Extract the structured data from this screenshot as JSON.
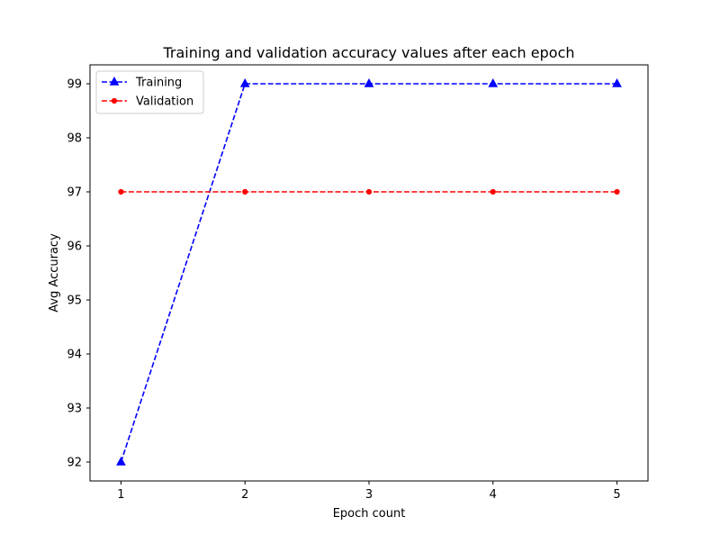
{
  "chart_data": {
    "type": "line",
    "title": "Training and validation accuracy values after each epoch",
    "xlabel": "Epoch count",
    "ylabel": "Avg Accuracy",
    "x": [
      1,
      2,
      3,
      4,
      5
    ],
    "xticks": [
      "1",
      "2",
      "3",
      "4",
      "5"
    ],
    "yticks": [
      "92",
      "93",
      "94",
      "95",
      "96",
      "97",
      "98",
      "99"
    ],
    "xlim": [
      0.75,
      5.25
    ],
    "ylim": [
      91.65,
      99.35
    ],
    "grid": false,
    "legend_position": "top-left",
    "series": [
      {
        "name": "Training",
        "values": [
          92,
          99,
          99,
          99,
          99
        ],
        "color": "#0000ff",
        "line_style": "dashed",
        "marker": "triangle-up"
      },
      {
        "name": "Validation",
        "values": [
          97,
          97,
          97,
          97,
          97
        ],
        "color": "#ff0000",
        "line_style": "dashed",
        "marker": "point"
      }
    ]
  }
}
